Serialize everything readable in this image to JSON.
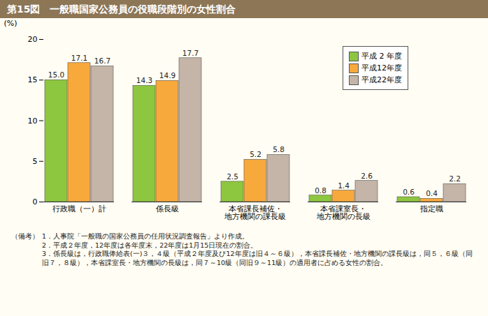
{
  "chart_data": {
    "type": "bar",
    "title": "第15図　一般職国家公務員の役職段階別の女性割合",
    "y_label": "(%)",
    "categories": [
      "行政職（一）計",
      "係長級",
      "本省課長補佐・\n地方機関の課長級",
      "本省課室長・\n地方機関の長級",
      "指定職"
    ],
    "series": [
      {
        "name": "平成 2 年度",
        "color": "#8dc63f",
        "values": [
          15.0,
          14.3,
          2.5,
          0.8,
          0.6
        ],
        "value_labels": [
          "15.0",
          "14.3",
          "2.5",
          "0.8",
          "0.6"
        ]
      },
      {
        "name": "平成12年度",
        "color": "#f8a93b",
        "values": [
          17.1,
          14.9,
          5.2,
          1.4,
          0.4
        ]
      },
      {
        "name": "平成22年度",
        "color": "#c4b5a8",
        "values": [
          16.7,
          17.7,
          5.8,
          2.6,
          2.2
        ]
      }
    ],
    "ylim": [
      0,
      20
    ],
    "yticks": [
      0,
      5,
      10,
      15,
      20
    ],
    "grid": false,
    "legend": "top-right",
    "data_labels": true,
    "notes_label": "（備考）",
    "notes": [
      "1．人事院「一般職の国家公務員の任用状況調査報告」より作成。",
      "2．平成２年度，12年度は各年度末，22年度は1月15日現在の割合。",
      "3．係長級は，行政職俸給表(一)３，４級（平成２年度及び12年度は旧４～６級），本省課長補佐・地方機関の課長級は，同５，６級（同旧７，８級），本省課室長・地方機関の長級は，同７～10級（同旧９～11級）の適用者に占める女性の割合。"
    ]
  }
}
